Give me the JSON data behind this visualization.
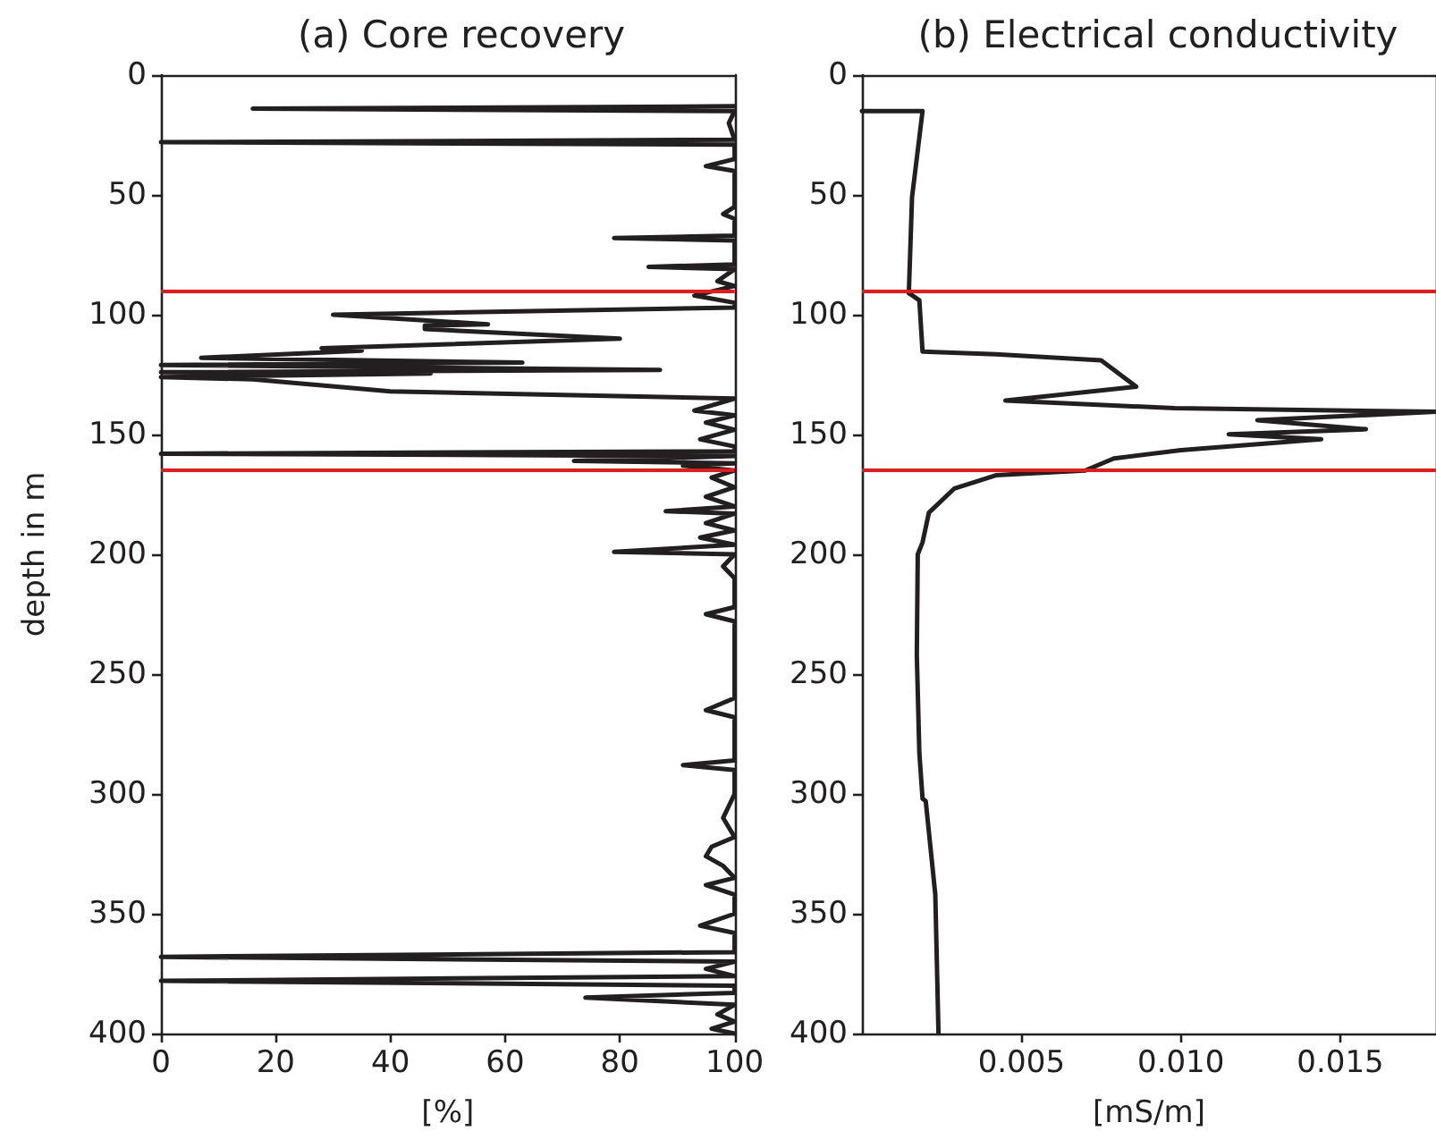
{
  "chart_data": [
    {
      "type": "line",
      "title": "(a) Core recovery",
      "xlabel": "[%]",
      "ylabel": "depth in m",
      "orientation": "horizontal",
      "color": "#231f20",
      "grid": false,
      "x": [
        13,
        14,
        15,
        20,
        27,
        28,
        29,
        35,
        38,
        40,
        55,
        58,
        60,
        67,
        68,
        69,
        75,
        79,
        80,
        81,
        86,
        88,
        92,
        95,
        97,
        100,
        101,
        104,
        104.5,
        106,
        110,
        114,
        115,
        118,
        120,
        121,
        123,
        124,
        124.5,
        126,
        127,
        132,
        135,
        140,
        142,
        145,
        148,
        152,
        155,
        157,
        158,
        159,
        161,
        162,
        163,
        165,
        168,
        172,
        176,
        180,
        182,
        183,
        187,
        190,
        193,
        196,
        199,
        200,
        205,
        210,
        222,
        225,
        228,
        260,
        265,
        268,
        286,
        288,
        290,
        300,
        310,
        318,
        322,
        326,
        330,
        335,
        338,
        342,
        350,
        355,
        358,
        362,
        366,
        368,
        370,
        373,
        376,
        378,
        380,
        383,
        385,
        388,
        392,
        395,
        398,
        400
      ],
      "values": [
        100,
        16,
        100,
        99,
        100,
        0,
        100,
        100,
        95,
        100,
        100,
        98,
        100,
        100,
        79,
        100,
        100,
        100,
        85,
        100,
        97,
        100,
        93,
        100,
        100,
        30,
        37,
        57,
        46,
        46,
        80,
        28,
        35,
        7,
        63,
        0,
        87,
        0,
        47,
        0,
        16,
        40,
        100,
        93,
        100,
        95,
        100,
        94,
        100,
        100,
        0,
        100,
        72,
        100,
        91,
        100,
        96,
        100,
        95,
        100,
        88,
        100,
        95,
        100,
        94,
        100,
        79,
        100,
        98,
        100,
        100,
        95,
        100,
        100,
        95,
        100,
        100,
        91,
        100,
        100,
        98,
        100,
        96,
        95,
        98,
        100,
        95,
        100,
        100,
        94,
        100,
        100,
        100,
        0,
        100,
        95,
        100,
        0,
        100,
        100,
        74,
        100,
        97,
        100,
        96,
        100
      ],
      "xlim": [
        0,
        100
      ],
      "xticks": [
        0,
        20,
        40,
        60,
        80,
        100
      ],
      "ylim": [
        400,
        0
      ],
      "yticks": [
        0,
        50,
        100,
        150,
        200,
        250,
        300,
        350,
        400
      ],
      "ref_lines": [
        {
          "axis": "y",
          "value": 90,
          "color": "#e8191b"
        },
        {
          "axis": "y",
          "value": 165,
          "color": "#e8191b"
        }
      ]
    },
    {
      "type": "line",
      "title": "(b) Electrical conductivity",
      "xlabel": "[mS/m]",
      "orientation": "horizontal",
      "color": "#231f20",
      "grid": false,
      "x": [
        15,
        15,
        51,
        91,
        94,
        115.4,
        116.5,
        119,
        130,
        135.8,
        139,
        140.5,
        144,
        147.8,
        149.9,
        152,
        156.5,
        160,
        165,
        167,
        172.5,
        182.6,
        195,
        200,
        242,
        283,
        302,
        303,
        342,
        400
      ],
      "values": [
        0,
        0.0019,
        0.00157,
        0.00147,
        0.0018,
        0.0019,
        0.0042,
        0.0075,
        0.0086,
        0.0045,
        0.0098,
        0.018,
        0.0124,
        0.0158,
        0.0115,
        0.0144,
        0.01,
        0.0079,
        0.007,
        0.0042,
        0.0029,
        0.0021,
        0.0019,
        0.00175,
        0.00172,
        0.0018,
        0.0019,
        0.002,
        0.0023,
        0.0024
      ],
      "xlim": [
        0,
        0.018
      ],
      "xticks": [
        0.005,
        {
          "value": 0.01,
          "label": "0.010"
        },
        0.015
      ],
      "ylim": [
        400,
        0
      ],
      "yticks": [
        0,
        50,
        100,
        150,
        200,
        250,
        300,
        350,
        400
      ],
      "ref_lines": [
        {
          "axis": "y",
          "value": 90,
          "color": "#e8191b"
        },
        {
          "axis": "y",
          "value": 165,
          "color": "#e8191b"
        }
      ]
    }
  ]
}
